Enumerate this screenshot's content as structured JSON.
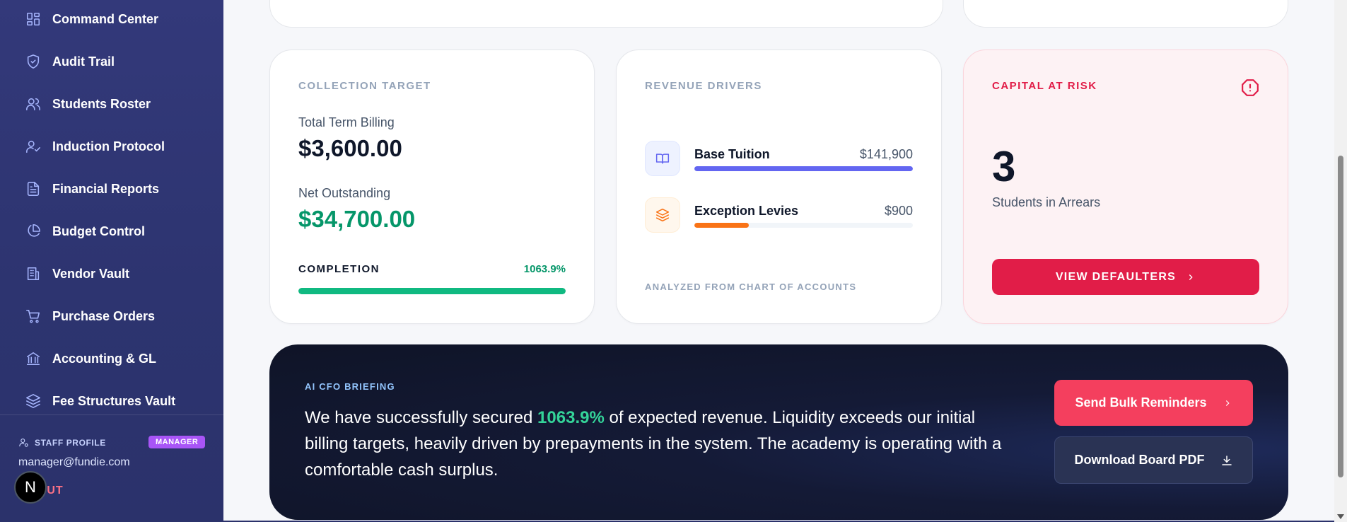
{
  "sidebar": {
    "items": [
      {
        "label": "Command Center",
        "icon": "dashboard-icon"
      },
      {
        "label": "Audit Trail",
        "icon": "shield-check-icon"
      },
      {
        "label": "Students Roster",
        "icon": "users-icon"
      },
      {
        "label": "Induction Protocol",
        "icon": "user-check-icon"
      },
      {
        "label": "Financial Reports",
        "icon": "file-text-icon"
      },
      {
        "label": "Budget Control",
        "icon": "pie-chart-icon"
      },
      {
        "label": "Vendor Vault",
        "icon": "building-icon"
      },
      {
        "label": "Purchase Orders",
        "icon": "cart-icon"
      },
      {
        "label": "Accounting & GL",
        "icon": "bank-icon"
      },
      {
        "label": "Fee Structures Vault",
        "icon": "layers-icon"
      }
    ],
    "profile": {
      "label": "STAFF PROFILE",
      "role_badge": "MANAGER",
      "email": "manager@fundie.com",
      "logout": "OGOUT"
    },
    "logo_letter": "N"
  },
  "collection_target": {
    "title": "COLLECTION TARGET",
    "billing_label": "Total Term Billing",
    "billing_value": "$3,600.00",
    "outstanding_label": "Net Outstanding",
    "outstanding_value": "$34,700.00",
    "completion_label": "COMPLETION",
    "completion_value": "1063.9%",
    "completion_fill_percent": 100
  },
  "revenue_drivers": {
    "title": "REVENUE DRIVERS",
    "items": [
      {
        "name": "Base Tuition",
        "value": "$141,900",
        "fill_percent": 100,
        "color": "#6366f1",
        "icon": "book-icon"
      },
      {
        "name": "Exception Levies",
        "value": "$900",
        "fill_percent": 25,
        "color": "#f97316",
        "icon": "layers-icon"
      }
    ],
    "footer": "ANALYZED FROM CHART OF ACCOUNTS"
  },
  "capital_at_risk": {
    "title": "CAPITAL AT RISK",
    "count": "3",
    "subtitle": "Students in Arrears",
    "button_label": "VIEW DEFAULTERS"
  },
  "briefing": {
    "label": "AI CFO BRIEFING",
    "text_before": "We have successfully secured ",
    "highlight": "1063.9%",
    "text_after": " of expected revenue. Liquidity exceeds our initial billing targets, heavily driven by prepayments in the system. The academy is operating with a comfortable cash surplus.",
    "primary_button": "Send Bulk Reminders",
    "secondary_button": "Download Board PDF"
  },
  "colors": {
    "sidebar": "#2d3470",
    "accent_green": "#10b981",
    "accent_red": "#e11d48",
    "accent_indigo": "#6366f1",
    "accent_orange": "#f97316"
  }
}
